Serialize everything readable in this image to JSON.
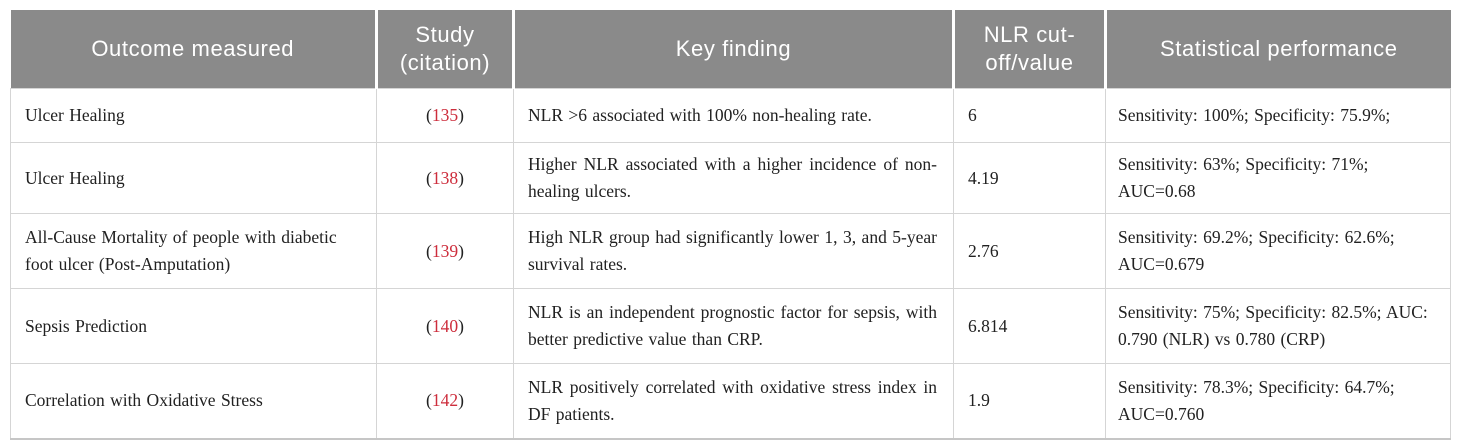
{
  "colors": {
    "header_bg": "#8a8a8a",
    "header_text": "#ffffff",
    "body_text": "#212121",
    "grid_border": "#d5d5d5",
    "citation_red": "#cd2d3c"
  },
  "table": {
    "columns": [
      {
        "label": "Outcome measured"
      },
      {
        "label": "Study (citation)"
      },
      {
        "label": "Key finding"
      },
      {
        "label": "NLR cut-off/value"
      },
      {
        "label": "Statistical performance"
      }
    ],
    "citation_open": "(",
    "citation_close": ")",
    "rows": [
      {
        "outcome": "Ulcer Healing",
        "citation": "135",
        "finding": "NLR >6 associated with 100% non-healing rate.",
        "cutoff": "6",
        "performance": "Sensitivity: 100%; Specificity: 75.9%;"
      },
      {
        "outcome": "Ulcer Healing",
        "citation": "138",
        "finding": "Higher NLR associated with a higher incidence of non-healing ulcers.",
        "cutoff": "4.19",
        "performance": "Sensitivity: 63%; Specificity: 71%; AUC=0.68"
      },
      {
        "outcome": "All-Cause Mortality of people with diabetic foot ulcer (Post-Amputation)",
        "citation": "139",
        "finding": "High NLR group had significantly lower 1, 3, and 5-year survival rates.",
        "cutoff": "2.76",
        "performance": "Sensitivity: 69.2%; Specificity: 62.6%; AUC=0.679"
      },
      {
        "outcome": "Sepsis Prediction",
        "citation": "140",
        "finding": "NLR is an independent prognostic factor for sepsis, with better predictive value than CRP.",
        "cutoff": "6.814",
        "performance": "Sensitivity: 75%; Specificity: 82.5%; AUC: 0.790 (NLR) vs 0.780 (CRP)"
      },
      {
        "outcome": "Correlation with Oxidative Stress",
        "citation": "142",
        "finding": "NLR positively correlated with oxidative stress index in DF patients.",
        "cutoff": "1.9",
        "performance": "Sensitivity: 78.3%; Specificity: 64.7%; AUC=0.760"
      }
    ]
  }
}
